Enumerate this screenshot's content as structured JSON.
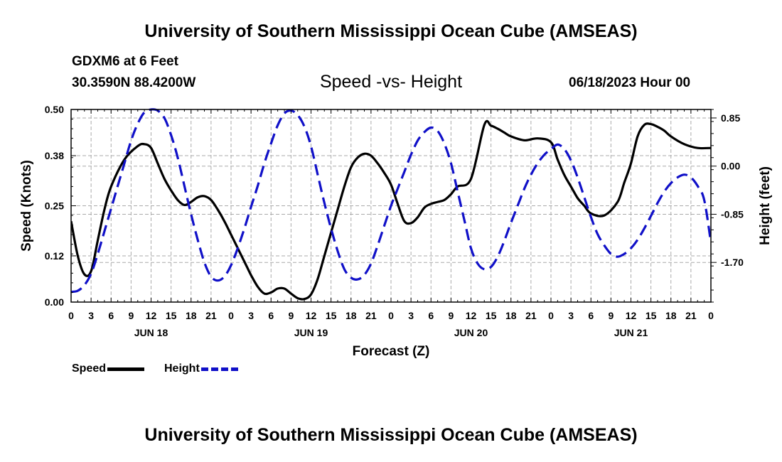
{
  "header": {
    "title": "University of Southern Mississippi Ocean Cube (AMSEAS)",
    "station": "GDXM6 at 6 Feet",
    "coords": "30.3590N  88.4200W",
    "subtitle": "Speed -vs- Height",
    "datetime": "06/18/2023 Hour 00"
  },
  "footer": {
    "title": "University of Southern Mississippi Ocean Cube (AMSEAS)"
  },
  "legend": {
    "speed_label": "Speed",
    "height_label": "Height"
  },
  "colors": {
    "speed": "#000000",
    "height": "#1010c8",
    "grid": "#aaaaaa"
  },
  "chart_data": {
    "type": "line",
    "title": "Speed -vs- Height",
    "xlabel": "Forecast (Z)",
    "ylabel": "Speed (Knots)",
    "y2label": "Height (feet)",
    "xlim": [
      0,
      96
    ],
    "ylim": [
      0,
      0.5
    ],
    "y2lim": [
      -2.4,
      1.0
    ],
    "yticks": [
      "0.00",
      "0.12",
      "0.25",
      "0.38",
      "0.50"
    ],
    "y2ticks": [
      "0.85",
      "0.00",
      "-0.85",
      "-1.70"
    ],
    "y2tick_values": [
      0.85,
      0.0,
      -0.85,
      -1.7
    ],
    "xtick_labels": [
      "0",
      "3",
      "6",
      "9",
      "12",
      "15",
      "18",
      "21",
      "0",
      "3",
      "6",
      "9",
      "12",
      "15",
      "18",
      "21",
      "0",
      "3",
      "6",
      "9",
      "12",
      "15",
      "18",
      "21",
      "0",
      "3",
      "6",
      "9",
      "12",
      "15",
      "18",
      "21",
      "0"
    ],
    "day_labels": [
      {
        "label": "JUN 18",
        "hour": 12
      },
      {
        "label": "JUN 19",
        "hour": 36
      },
      {
        "label": "JUN 20",
        "hour": 60
      },
      {
        "label": "JUN 21",
        "hour": 84
      }
    ],
    "series": [
      {
        "name": "Speed",
        "axis": "left",
        "x": [
          0,
          1,
          2,
          3,
          4,
          5,
          6,
          8,
          10,
          11,
          12,
          13,
          14,
          15,
          16,
          17,
          18,
          19,
          20,
          21,
          22,
          23,
          24,
          25,
          26,
          27,
          28,
          29,
          30,
          31,
          32,
          33,
          34,
          35,
          36,
          37,
          38,
          39,
          40,
          41,
          42,
          43,
          44,
          45,
          46,
          47,
          48,
          49,
          50,
          51,
          52,
          53,
          54,
          55,
          56,
          57,
          58,
          60,
          62,
          63,
          64,
          65,
          66,
          68,
          70,
          72,
          73,
          74,
          75,
          76,
          77,
          78,
          80,
          82,
          83,
          84,
          85,
          86,
          87,
          88,
          89,
          90,
          92,
          94,
          96
        ],
        "values": [
          0.21,
          0.12,
          0.072,
          0.08,
          0.16,
          0.24,
          0.3,
          0.37,
          0.405,
          0.41,
          0.4,
          0.36,
          0.32,
          0.29,
          0.265,
          0.252,
          0.26,
          0.272,
          0.275,
          0.265,
          0.24,
          0.21,
          0.175,
          0.14,
          0.105,
          0.07,
          0.04,
          0.022,
          0.025,
          0.035,
          0.035,
          0.022,
          0.01,
          0.008,
          0.02,
          0.06,
          0.12,
          0.18,
          0.24,
          0.3,
          0.35,
          0.375,
          0.385,
          0.38,
          0.36,
          0.335,
          0.305,
          0.255,
          0.21,
          0.205,
          0.22,
          0.245,
          0.255,
          0.26,
          0.265,
          0.28,
          0.3,
          0.32,
          0.46,
          0.458,
          0.45,
          0.44,
          0.43,
          0.42,
          0.425,
          0.415,
          0.37,
          0.33,
          0.3,
          0.27,
          0.25,
          0.23,
          0.225,
          0.26,
          0.31,
          0.36,
          0.43,
          0.46,
          0.462,
          0.455,
          0.445,
          0.43,
          0.41,
          0.4,
          0.4
        ]
      },
      {
        "name": "Height",
        "axis": "right",
        "dash": true,
        "x": [
          0,
          1,
          2,
          3,
          4,
          5,
          6,
          7,
          8,
          9,
          10,
          11,
          12,
          13,
          14,
          15,
          16,
          17,
          18,
          19,
          20,
          21,
          22,
          23,
          24,
          25,
          26,
          27,
          28,
          29,
          30,
          31,
          32,
          33,
          34,
          35,
          36,
          37,
          38,
          39,
          40,
          41,
          42,
          43,
          44,
          45,
          46,
          47,
          48,
          49,
          50,
          51,
          52,
          53,
          54,
          55,
          56,
          57,
          58,
          59,
          60,
          61,
          62,
          63,
          64,
          65,
          66,
          67,
          68,
          69,
          70,
          71,
          72,
          73,
          74,
          75,
          76,
          77,
          78,
          79,
          80,
          81,
          82,
          83,
          84,
          85,
          86,
          87,
          88,
          89,
          90,
          91,
          92,
          93,
          94,
          95,
          96
        ],
        "values": [
          -2.22,
          -2.2,
          -2.1,
          -1.9,
          -1.55,
          -1.15,
          -0.75,
          -0.35,
          0.05,
          0.45,
          0.75,
          0.95,
          1.0,
          0.98,
          0.85,
          0.55,
          0.15,
          -0.35,
          -0.85,
          -1.3,
          -1.7,
          -1.95,
          -2.02,
          -1.95,
          -1.75,
          -1.45,
          -1.1,
          -0.72,
          -0.35,
          0.05,
          0.4,
          0.72,
          0.93,
          0.98,
          0.9,
          0.7,
          0.35,
          -0.15,
          -0.65,
          -1.1,
          -1.5,
          -1.82,
          -1.97,
          -2.0,
          -1.92,
          -1.72,
          -1.4,
          -1.05,
          -0.7,
          -0.4,
          -0.1,
          0.2,
          0.45,
          0.6,
          0.68,
          0.62,
          0.4,
          0.05,
          -0.45,
          -0.95,
          -1.45,
          -1.72,
          -1.82,
          -1.78,
          -1.6,
          -1.32,
          -1.0,
          -0.7,
          -0.4,
          -0.15,
          0.05,
          0.2,
          0.3,
          0.38,
          0.3,
          0.1,
          -0.2,
          -0.55,
          -0.9,
          -1.2,
          -1.4,
          -1.55,
          -1.6,
          -1.55,
          -1.45,
          -1.3,
          -1.1,
          -0.88,
          -0.65,
          -0.45,
          -0.3,
          -0.2,
          -0.15,
          -0.2,
          -0.35,
          -0.6,
          -1.35
        ]
      }
    ]
  }
}
